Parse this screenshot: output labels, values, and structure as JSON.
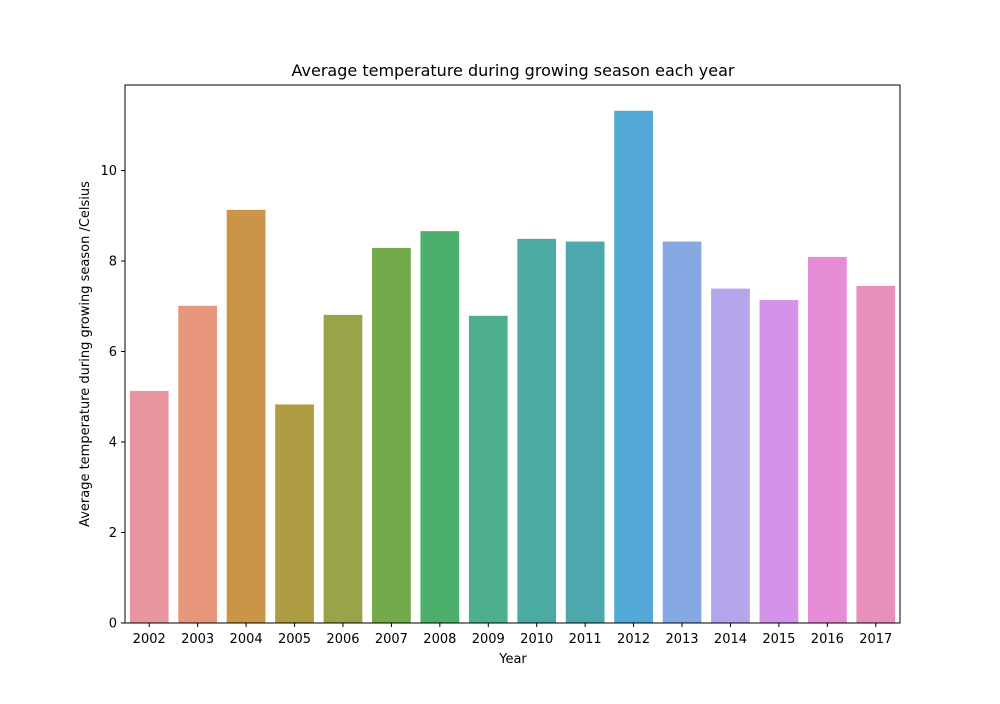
{
  "chart_data": {
    "type": "bar",
    "title": "Average temperature during growing season each year",
    "xlabel": "Year",
    "ylabel": "Average temperature during growing season /Celsius",
    "categories": [
      "2002",
      "2003",
      "2004",
      "2005",
      "2006",
      "2007",
      "2008",
      "2009",
      "2010",
      "2011",
      "2012",
      "2013",
      "2014",
      "2015",
      "2016",
      "2017"
    ],
    "values": [
      5.13,
      7.01,
      9.13,
      4.83,
      6.81,
      8.29,
      8.66,
      6.79,
      8.49,
      8.43,
      11.32,
      8.43,
      7.39,
      7.14,
      8.09,
      7.45
    ],
    "colors": [
      "#e8969f",
      "#e6967a",
      "#ca9549",
      "#ae9c43",
      "#98a34a",
      "#72aa4a",
      "#4daf6c",
      "#4eaf8d",
      "#4baaa2",
      "#4ca8ad",
      "#53a9d6",
      "#86a8e3",
      "#b4a5ec",
      "#d492e8",
      "#e78cd7",
      "#e88fbd"
    ],
    "ylim": [
      0,
      11.89
    ],
    "yticks": [
      0,
      2,
      4,
      6,
      8,
      10
    ],
    "ytick_labels": [
      "0",
      "2",
      "4",
      "6",
      "8",
      "10"
    ],
    "grid": false,
    "legend": "none"
  }
}
